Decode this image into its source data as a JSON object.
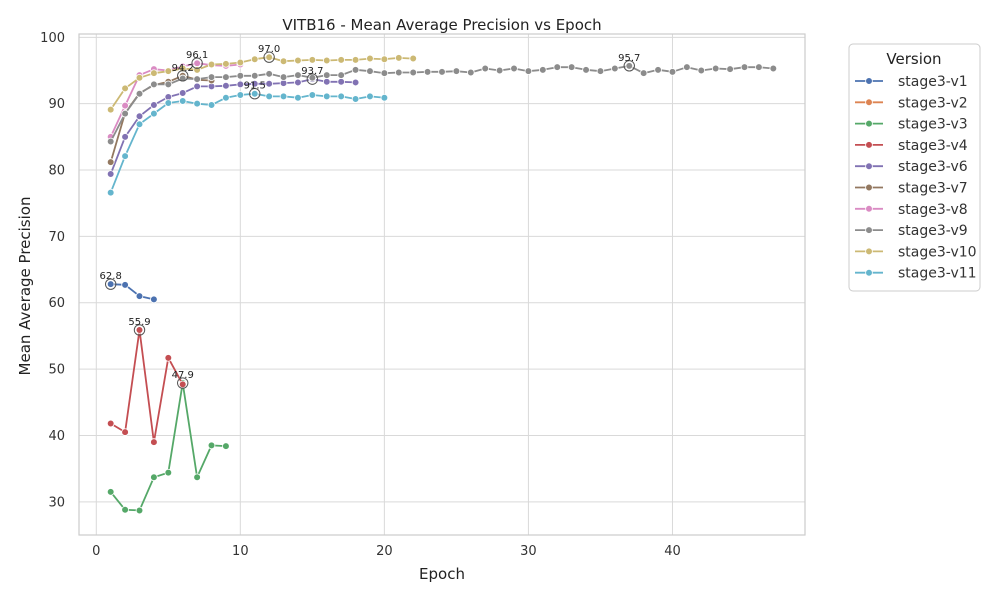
{
  "chart_data": {
    "type": "line",
    "title": "VITB16 - Mean Average Precision vs Epoch",
    "xlabel": "Epoch",
    "ylabel": "Mean Average Precision",
    "xlim": [
      -1.2,
      49.2
    ],
    "ylim": [
      25,
      100.5
    ],
    "xticks": [
      0,
      10,
      20,
      30,
      40
    ],
    "yticks": [
      30,
      40,
      50,
      60,
      70,
      80,
      90,
      100
    ],
    "grid": true,
    "legend": {
      "title": "Version",
      "placement": "outside-right"
    },
    "series": [
      {
        "name": "stage3-v1",
        "color": "#4c72b0",
        "x": [
          1,
          2,
          3,
          4
        ],
        "y": [
          62.8,
          62.7,
          61.0,
          60.5
        ],
        "best": {
          "x": 1,
          "y": 62.8,
          "label": "62.8"
        }
      },
      {
        "name": "stage3-v2",
        "color": "#dd8452",
        "x": [],
        "y": [],
        "best": null
      },
      {
        "name": "stage3-v3",
        "color": "#55a868",
        "x": [
          1,
          2,
          3,
          4,
          5,
          6,
          7,
          8,
          9
        ],
        "y": [
          31.5,
          28.8,
          28.7,
          33.7,
          34.4,
          47.9,
          33.7,
          38.5,
          38.4
        ],
        "best": {
          "x": 6,
          "y": 47.9,
          "label": "47.9"
        }
      },
      {
        "name": "stage3-v4",
        "color": "#c44e52",
        "x": [
          1,
          2,
          3,
          4,
          5,
          6
        ],
        "y": [
          41.8,
          40.5,
          55.9,
          39.0,
          51.7,
          47.7
        ],
        "best": {
          "x": 3,
          "y": 55.9,
          "label": "55.9"
        }
      },
      {
        "name": "stage3-v6",
        "color": "#8172b3",
        "x": [
          1,
          2,
          3,
          4,
          5,
          6,
          7,
          8,
          9,
          10,
          11,
          12,
          13,
          14,
          15,
          16,
          17,
          18
        ],
        "y": [
          79.4,
          85.0,
          88.1,
          89.8,
          91.0,
          91.6,
          92.6,
          92.6,
          92.7,
          92.9,
          93.0,
          93.0,
          93.1,
          93.2,
          93.7,
          93.3,
          93.3,
          93.2
        ],
        "best": {
          "x": 15,
          "y": 93.7,
          "label": "93.7"
        }
      },
      {
        "name": "stage3-v7",
        "color": "#937860",
        "x": [
          1,
          2,
          3,
          4,
          5,
          6,
          7,
          8
        ],
        "y": [
          81.2,
          88.6,
          91.6,
          92.8,
          93.3,
          94.2,
          93.6,
          93.5
        ],
        "best": {
          "x": 6,
          "y": 94.2,
          "label": "94.2"
        }
      },
      {
        "name": "stage3-v8",
        "color": "#da8bc3",
        "x": [
          1,
          2,
          3,
          4,
          5,
          6,
          7,
          8,
          9,
          10
        ],
        "y": [
          85.0,
          89.7,
          94.3,
          95.2,
          95.0,
          95.6,
          96.1,
          95.8,
          95.7,
          95.9
        ],
        "best": {
          "x": 7,
          "y": 96.1,
          "label": "96.1"
        }
      },
      {
        "name": "stage3-v9",
        "color": "#8c8c8c",
        "x": [
          1,
          2,
          3,
          4,
          5,
          6,
          7,
          8,
          9,
          10,
          11,
          12,
          13,
          14,
          15,
          16,
          17,
          18,
          19,
          20,
          21,
          22,
          23,
          24,
          25,
          26,
          27,
          28,
          29,
          30,
          31,
          32,
          33,
          34,
          35,
          36,
          37,
          38,
          39,
          40,
          41,
          42,
          43,
          44,
          45,
          46,
          47
        ],
        "y": [
          84.3,
          88.5,
          91.5,
          92.9,
          92.9,
          93.8,
          93.7,
          94.0,
          94.0,
          94.2,
          94.2,
          94.5,
          94.0,
          94.3,
          93.9,
          94.3,
          94.3,
          95.1,
          94.9,
          94.6,
          94.7,
          94.7,
          94.8,
          94.8,
          94.9,
          94.7,
          95.3,
          95.0,
          95.3,
          94.9,
          95.1,
          95.5,
          95.5,
          95.1,
          94.9,
          95.3,
          95.7,
          94.6,
          95.1,
          94.8,
          95.5,
          95.0,
          95.3,
          95.2,
          95.5,
          95.5,
          95.3
        ],
        "best": {
          "x": 37,
          "y": 95.7,
          "label": "95.7"
        }
      },
      {
        "name": "stage3-v10",
        "color": "#ccb974",
        "x": [
          1,
          2,
          3,
          4,
          5,
          6,
          7,
          8,
          9,
          10,
          11,
          12,
          13,
          14,
          15,
          16,
          17,
          18,
          19,
          20,
          21,
          22
        ],
        "y": [
          89.1,
          92.3,
          93.9,
          94.6,
          94.9,
          95.3,
          95.1,
          95.9,
          96.0,
          96.2,
          96.7,
          97.0,
          96.4,
          96.5,
          96.6,
          96.5,
          96.6,
          96.6,
          96.8,
          96.7,
          96.9,
          96.8
        ],
        "best": {
          "x": 12,
          "y": 97.0,
          "label": "97.0"
        }
      },
      {
        "name": "stage3-v11",
        "color": "#64b5cd",
        "x": [
          1,
          2,
          3,
          4,
          5,
          6,
          7,
          8,
          9,
          10,
          11,
          12,
          13,
          14,
          15,
          16,
          17,
          18,
          19,
          20
        ],
        "y": [
          76.6,
          82.1,
          86.9,
          88.5,
          90.1,
          90.4,
          90.0,
          89.8,
          90.9,
          91.3,
          91.5,
          91.1,
          91.1,
          90.9,
          91.3,
          91.1,
          91.1,
          90.7,
          91.1,
          90.9
        ],
        "best": {
          "x": 11,
          "y": 91.5,
          "label": "91.5"
        }
      }
    ]
  }
}
